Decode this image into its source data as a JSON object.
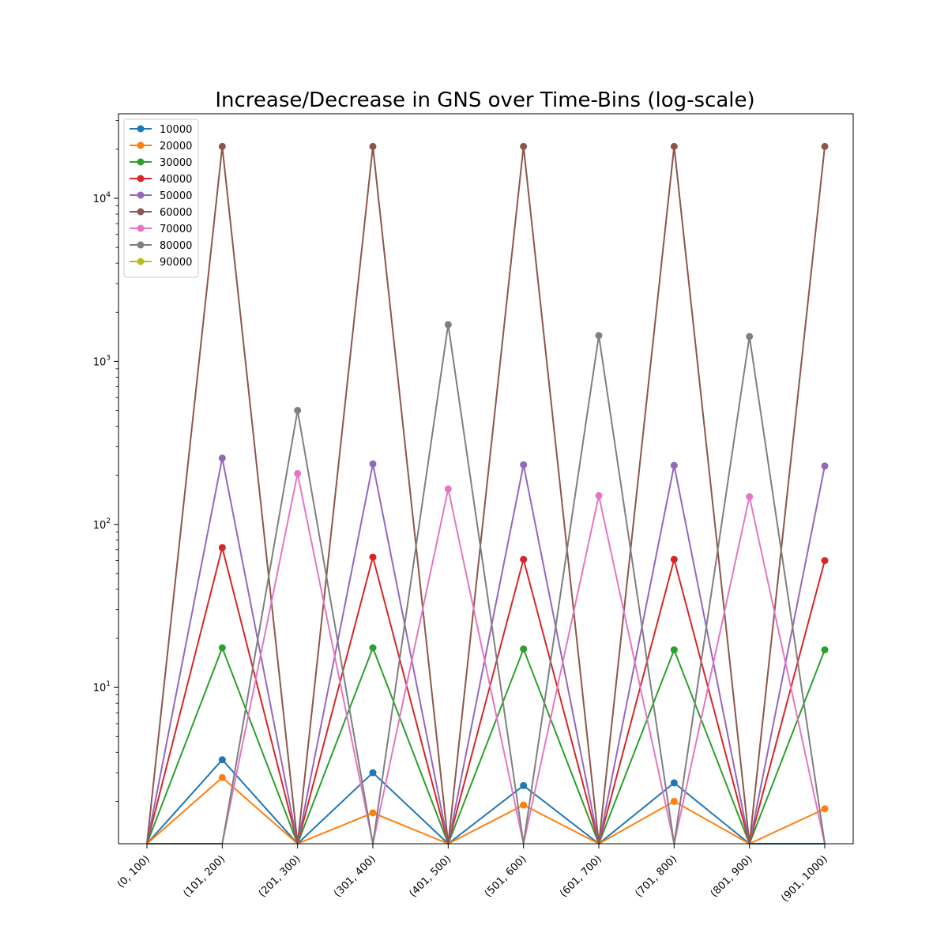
{
  "chart_data": {
    "type": "line",
    "title": "Increase/Decrease in GNS over Time-Bins (log-scale)",
    "xlabel": "",
    "ylabel": "",
    "yscale": "log",
    "ylim": [
      1.1,
      33000
    ],
    "grid": false,
    "legend_position": "top-left",
    "categories": [
      "(0, 100)",
      "(101, 200)",
      "(201, 300)",
      "(301, 400)",
      "(401, 500)",
      "(501, 600)",
      "(601, 700)",
      "(701, 800)",
      "(801, 900)",
      "(901, 1000)"
    ],
    "y_ticks": [
      {
        "value": 10,
        "base": "10",
        "exp": "1"
      },
      {
        "value": 100,
        "base": "10",
        "exp": "2"
      },
      {
        "value": 1000,
        "base": "10",
        "exp": "3"
      },
      {
        "value": 10000,
        "base": "10",
        "exp": "4"
      }
    ],
    "series": [
      {
        "name": "10000",
        "color": "#1f77b4",
        "values": [
          0,
          3.6,
          0,
          3.0,
          0,
          2.5,
          0,
          2.6,
          0,
          0
        ]
      },
      {
        "name": "20000",
        "color": "#ff7f0e",
        "values": [
          0,
          2.8,
          0,
          1.7,
          0,
          1.9,
          0,
          2.0,
          0,
          1.8
        ]
      },
      {
        "name": "30000",
        "color": "#2ca02c",
        "values": [
          0,
          17.5,
          0,
          17.5,
          0,
          17.2,
          0,
          17.0,
          0,
          17.0
        ]
      },
      {
        "name": "40000",
        "color": "#d62728",
        "values": [
          0,
          72,
          0,
          63,
          0,
          61,
          0,
          61,
          0,
          60
        ]
      },
      {
        "name": "50000",
        "color": "#9467bd",
        "values": [
          0,
          255,
          0,
          235,
          0,
          232,
          0,
          230,
          0,
          228
        ]
      },
      {
        "name": "60000",
        "color": "#8c564b",
        "values": [
          0,
          20800,
          0,
          20800,
          0,
          20800,
          0,
          20800,
          0,
          20800
        ]
      },
      {
        "name": "70000",
        "color": "#e377c2",
        "values": [
          0,
          0,
          205,
          0,
          165,
          0,
          150,
          0,
          148,
          0
        ]
      },
      {
        "name": "80000",
        "color": "#7f7f7f",
        "values": [
          0,
          0,
          500,
          0,
          1680,
          0,
          1440,
          0,
          1420,
          0
        ]
      },
      {
        "name": "90000",
        "color": "#bcbd22",
        "values": [
          0,
          0,
          0,
          0,
          0,
          0,
          0,
          0,
          0,
          0
        ]
      }
    ]
  }
}
